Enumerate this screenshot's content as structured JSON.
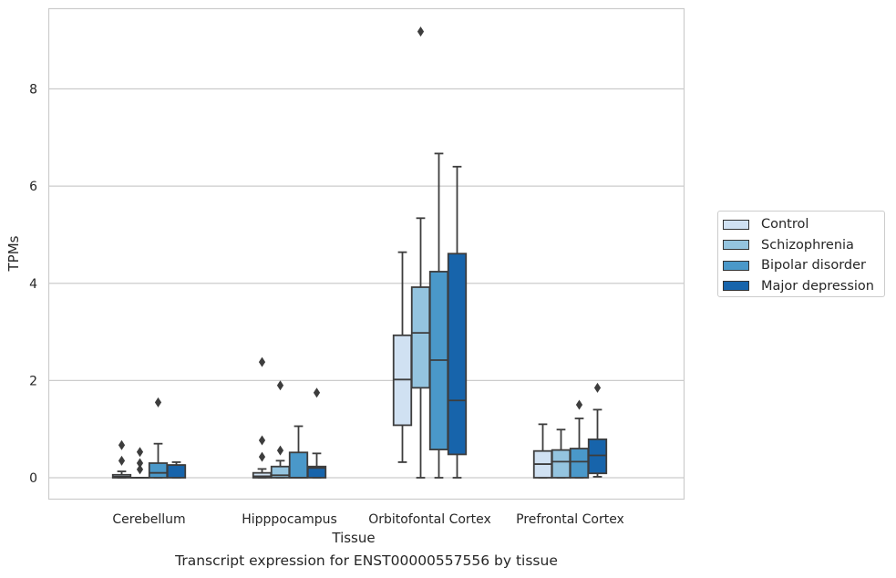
{
  "caption": "Transcript expression for ENST00000557556 by tissue",
  "chart_data": {
    "type": "boxplot",
    "xlabel": "Tissue",
    "ylabel": "TPMs",
    "ylim": [
      -0.45,
      9.6
    ],
    "yticks": [
      0,
      2,
      4,
      6,
      8
    ],
    "grid": "horizontal",
    "legend_position": "right",
    "categories": [
      "Cerebellum",
      "Hipppocampus",
      "Orbitofontal Cortex",
      "Prefrontal Cortex"
    ],
    "series": [
      {
        "name": "Control",
        "color": "#d0e1f2",
        "boxes": [
          {
            "whislo": 0,
            "q1": 0,
            "med": 0.02,
            "q3": 0.06,
            "whishi": 0.13,
            "fliers": [
              0.35,
              0.67
            ]
          },
          {
            "whislo": 0,
            "q1": 0,
            "med": 0.03,
            "q3": 0.1,
            "whishi": 0.18,
            "fliers": [
              0.43,
              0.77,
              2.38
            ]
          },
          {
            "whislo": 0.32,
            "q1": 1.08,
            "med": 2.02,
            "q3": 2.93,
            "whishi": 4.64,
            "fliers": []
          },
          {
            "whislo": 0,
            "q1": 0,
            "med": 0.28,
            "q3": 0.55,
            "whishi": 1.1,
            "fliers": []
          }
        ]
      },
      {
        "name": "Schizophrenia",
        "color": "#94c4df",
        "boxes": [
          {
            "whislo": 0,
            "q1": 0,
            "med": 0,
            "q3": 0,
            "whishi": 0,
            "fliers": [
              0.17,
              0.3,
              0.53
            ]
          },
          {
            "whislo": 0,
            "q1": 0,
            "med": 0.05,
            "q3": 0.23,
            "whishi": 0.35,
            "fliers": [
              0.56,
              1.9
            ]
          },
          {
            "whislo": 0,
            "q1": 1.85,
            "med": 2.98,
            "q3": 3.92,
            "whishi": 5.34,
            "fliers": [
              9.18
            ]
          },
          {
            "whislo": 0,
            "q1": 0,
            "med": 0.33,
            "q3": 0.57,
            "whishi": 0.99,
            "fliers": []
          }
        ]
      },
      {
        "name": "Bipolar disorder",
        "color": "#4a98c9",
        "boxes": [
          {
            "whislo": 0,
            "q1": 0,
            "med": 0.1,
            "q3": 0.3,
            "whishi": 0.7,
            "fliers": [
              1.55
            ]
          },
          {
            "whislo": 0,
            "q1": 0,
            "med": 0,
            "q3": 0.52,
            "whishi": 1.06,
            "fliers": []
          },
          {
            "whislo": 0,
            "q1": 0.58,
            "med": 2.42,
            "q3": 4.24,
            "whishi": 6.67,
            "fliers": []
          },
          {
            "whislo": 0,
            "q1": 0,
            "med": 0.33,
            "q3": 0.6,
            "whishi": 1.22,
            "fliers": [
              1.5
            ]
          }
        ]
      },
      {
        "name": "Major depression",
        "color": "#1764ab",
        "boxes": [
          {
            "whislo": 0,
            "q1": 0,
            "med": 0.26,
            "q3": 0.26,
            "whishi": 0.32,
            "fliers": []
          },
          {
            "whislo": 0,
            "q1": 0,
            "med": 0.2,
            "q3": 0.23,
            "whishi": 0.5,
            "fliers": [
              1.75
            ]
          },
          {
            "whislo": 0,
            "q1": 0.48,
            "med": 1.59,
            "q3": 4.61,
            "whishi": 6.4,
            "fliers": []
          },
          {
            "whislo": 0.02,
            "q1": 0.09,
            "med": 0.46,
            "q3": 0.79,
            "whishi": 1.4,
            "fliers": [
              1.85
            ]
          }
        ]
      }
    ]
  }
}
